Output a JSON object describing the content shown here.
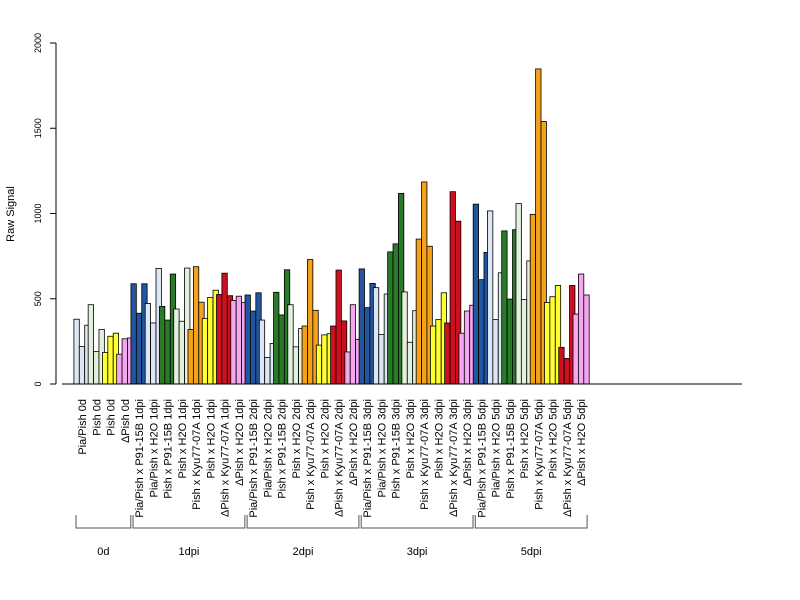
{
  "chart_data": {
    "type": "bar",
    "ylabel": "Raw Signal",
    "ylim": [
      0,
      2000
    ],
    "yticks": [
      0,
      500,
      1000,
      1500,
      2000
    ],
    "grid": false,
    "legend": "none",
    "categories": [
      "Pia/Pish 0d",
      "Pish 0d",
      "Pish 0d",
      "ΔPish 0d",
      "Pia/Pish x P91-15B 1dpi",
      "Pia/Pish x H2O 1dpi",
      "Pish x P91-15B 1dpi",
      "Pish x H2O 1dpi",
      "Pish x Kyu77-07A 1dpi",
      "Pish x H2O 1dpi",
      "ΔPish x Kyu77-07A 1dpi",
      "ΔPish x H2O 1dpi",
      "Pia/Pish x P91-15B 2dpi",
      "Pia/Pish x H2O 2dpi",
      "Pish x P91-15B 2dpi",
      "Pish x H2O 2dpi",
      "Pish x Kyu77-07A 2dpi",
      "Pish x H2O 2dpi",
      "ΔPish x Kyu77-07A 2dpi",
      "ΔPish x H2O 2dpi",
      "Pia/Pish x P91-15B 3dpi",
      "Pia/Pish x H2O 3dpi",
      "Pish x P91-15B 3dpi",
      "Pish x H2O 3dpi",
      "Pish x Kyu77-07A 3dpi",
      "Pish x H2O 3dpi",
      "ΔPish x Kyu77-07A 3dpi",
      "ΔPish x H2O 3dpi",
      "Pia/Pish x P91-15B 5dpi",
      "Pia/Pish x H2O 5dpi",
      "Pish x P91-15B 5dpi",
      "Pish x H2O 5dpi",
      "Pish x Kyu77-07A 5dpi",
      "Pish x H2O 5dpi",
      "ΔPish x Kyu77-07A 5dpi",
      "ΔPish x H2O 5dpi"
    ],
    "colors": [
      "#dce6f5",
      "#e3f0dc",
      "#ffff33",
      "#f4a6f0",
      "#2356a0",
      "#dce6f5",
      "#2a7a2a",
      "#e3f0dc",
      "#f5a21b",
      "#ffff33",
      "#cc1020",
      "#f4a6f0",
      "#2356a0",
      "#dce6f5",
      "#2a7a2a",
      "#e3f0dc",
      "#f5a21b",
      "#ffff33",
      "#cc1020",
      "#f4a6f0",
      "#2356a0",
      "#dce6f5",
      "#2a7a2a",
      "#e3f0dc",
      "#f5a21b",
      "#ffff33",
      "#cc1020",
      "#f4a6f0",
      "#2356a0",
      "#dce6f5",
      "#2a7a2a",
      "#e3f0dc",
      "#f5a21b",
      "#ffff33",
      "#cc1020",
      "#f4a6f0"
    ],
    "values": [
      [
        380,
        220,
        345
      ],
      [
        465,
        190,
        320
      ],
      [
        185,
        280,
        298
      ],
      [
        175,
        265,
        270
      ],
      [
        588,
        415,
        588
      ],
      [
        472,
        358,
        678
      ],
      [
        455,
        375,
        645
      ],
      [
        440,
        368,
        680
      ],
      [
        320,
        688,
        480
      ],
      [
        385,
        508,
        550
      ],
      [
        525,
        650,
        518
      ],
      [
        490,
        515,
        478
      ],
      [
        522,
        428,
        535
      ],
      [
        375,
        155,
        238
      ],
      [
        538,
        405,
        670
      ],
      [
        465,
        218,
        325
      ],
      [
        340,
        730,
        432
      ],
      [
        228,
        288,
        295
      ],
      [
        340,
        668,
        370
      ],
      [
        188,
        465,
        262
      ],
      [
        675,
        448,
        590
      ],
      [
        565,
        290,
        528
      ],
      [
        775,
        822,
        1118
      ],
      [
        540,
        245,
        430
      ],
      [
        850,
        1185,
        808
      ],
      [
        340,
        378,
        535
      ],
      [
        358,
        1128,
        955
      ],
      [
        298,
        428,
        462
      ],
      [
        1055,
        612,
        772
      ],
      [
        1015,
        378,
        652
      ],
      [
        898,
        498,
        905
      ],
      [
        1058,
        495,
        722
      ],
      [
        995,
        1848,
        1540
      ],
      [
        478,
        512,
        578
      ],
      [
        215,
        150,
        578
      ],
      [
        410,
        645,
        522
      ]
    ],
    "groups": [
      {
        "label": "0d",
        "start": 0,
        "end": 3
      },
      {
        "label": "1dpi",
        "start": 4,
        "end": 11
      },
      {
        "label": "2dpi",
        "start": 12,
        "end": 19
      },
      {
        "label": "3dpi",
        "start": 20,
        "end": 27
      },
      {
        "label": "5dpi",
        "start": 28,
        "end": 35
      }
    ]
  }
}
